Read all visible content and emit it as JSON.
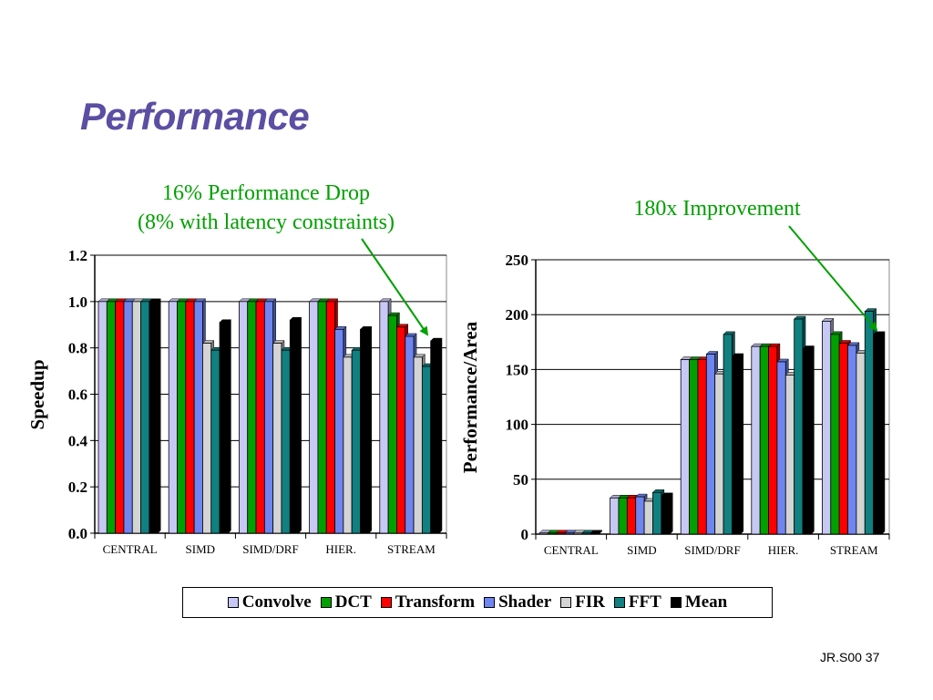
{
  "slide": {
    "title": "Performance",
    "footer": "JR.S00 37"
  },
  "annotations": {
    "left_line1": "16% Performance Drop",
    "left_line2": "(8% with latency constraints)",
    "right": "180x Improvement"
  },
  "colors": {
    "annotation": "#00a000",
    "title": "#5b4ea3",
    "series": [
      "#c8c8f5",
      "#00a000",
      "#ff0000",
      "#6f85f0",
      "#d4d4d4",
      "#108080",
      "#000000"
    ]
  },
  "legend": [
    "Convolve",
    "DCT",
    "Transform",
    "Shader",
    "FIR",
    "FFT",
    "Mean"
  ],
  "chart_data": [
    {
      "type": "bar",
      "ylabel": "Speedup",
      "xlabel": "",
      "ylim": [
        0,
        1.2
      ],
      "yticks": [
        "0.0",
        "0.2",
        "0.4",
        "0.6",
        "0.8",
        "1.0",
        "1.2"
      ],
      "grid": true,
      "categories": [
        "CENTRAL",
        "SIMD",
        "SIMD/DRF",
        "HIER.",
        "STREAM"
      ],
      "series": [
        {
          "name": "Convolve",
          "values": [
            1.0,
            1.0,
            1.0,
            1.0,
            1.0
          ]
        },
        {
          "name": "DCT",
          "values": [
            1.0,
            1.0,
            1.0,
            1.0,
            0.94
          ]
        },
        {
          "name": "Transform",
          "values": [
            1.0,
            1.0,
            1.0,
            1.0,
            0.89
          ]
        },
        {
          "name": "Shader",
          "values": [
            1.0,
            1.0,
            1.0,
            0.88,
            0.85
          ]
        },
        {
          "name": "FIR",
          "values": [
            1.0,
            0.82,
            0.82,
            0.76,
            0.76
          ]
        },
        {
          "name": "FFT",
          "values": [
            1.0,
            0.79,
            0.79,
            0.79,
            0.72
          ]
        },
        {
          "name": "Mean",
          "values": [
            1.0,
            0.91,
            0.92,
            0.88,
            0.83
          ]
        }
      ]
    },
    {
      "type": "bar",
      "ylabel": "Performance/Area",
      "xlabel": "",
      "ylim": [
        0,
        250
      ],
      "yticks": [
        "0",
        "50",
        "100",
        "150",
        "200",
        "250"
      ],
      "grid": true,
      "categories": [
        "CENTRAL",
        "SIMD",
        "SIMD/DRF",
        "HIER.",
        "STREAM"
      ],
      "series": [
        {
          "name": "Convolve",
          "values": [
            1,
            33,
            159,
            171,
            194
          ]
        },
        {
          "name": "DCT",
          "values": [
            1,
            33,
            159,
            171,
            182
          ]
        },
        {
          "name": "Transform",
          "values": [
            1,
            33,
            159,
            171,
            174
          ]
        },
        {
          "name": "Shader",
          "values": [
            1,
            34,
            164,
            157,
            172
          ]
        },
        {
          "name": "FIR",
          "values": [
            1,
            30,
            146,
            145,
            165
          ]
        },
        {
          "name": "FFT",
          "values": [
            1,
            38,
            182,
            196,
            203
          ]
        },
        {
          "name": "Mean",
          "values": [
            1,
            35,
            162,
            169,
            182
          ]
        }
      ]
    }
  ]
}
